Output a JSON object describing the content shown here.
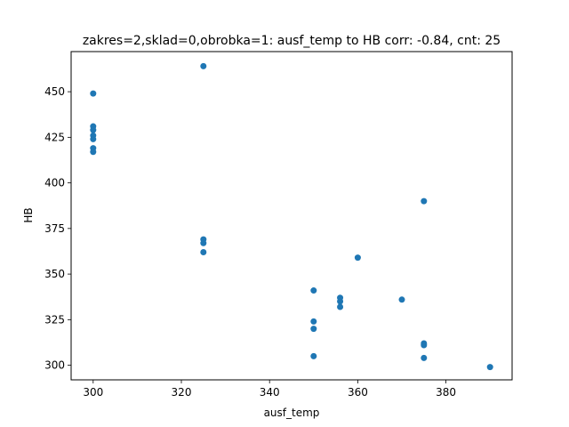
{
  "chart_data": {
    "type": "scatter",
    "title": "zakres=2,sklad=0,obrobka=1: ausf_temp to HB corr: -0.84, cnt: 25",
    "xlabel": "ausf_temp",
    "ylabel": "HB",
    "xlim": [
      295,
      395
    ],
    "ylim": [
      292,
      472
    ],
    "xticks": [
      300,
      320,
      340,
      360,
      380
    ],
    "yticks": [
      300,
      325,
      350,
      375,
      400,
      425,
      450
    ],
    "xtick_labels": [
      "300",
      "320",
      "340",
      "360",
      "380"
    ],
    "ytick_labels": [
      "300",
      "325",
      "350",
      "375",
      "400",
      "425",
      "450"
    ],
    "grid": false,
    "marker_color": "#1f77b4",
    "points": [
      {
        "x": 300,
        "y": 449
      },
      {
        "x": 300,
        "y": 431
      },
      {
        "x": 300,
        "y": 429
      },
      {
        "x": 300,
        "y": 426
      },
      {
        "x": 300,
        "y": 424
      },
      {
        "x": 300,
        "y": 419
      },
      {
        "x": 300,
        "y": 417
      },
      {
        "x": 325,
        "y": 464
      },
      {
        "x": 325,
        "y": 369
      },
      {
        "x": 325,
        "y": 367
      },
      {
        "x": 325,
        "y": 362
      },
      {
        "x": 350,
        "y": 341
      },
      {
        "x": 350,
        "y": 324
      },
      {
        "x": 350,
        "y": 320
      },
      {
        "x": 350,
        "y": 305
      },
      {
        "x": 356,
        "y": 337
      },
      {
        "x": 356,
        "y": 335
      },
      {
        "x": 356,
        "y": 332
      },
      {
        "x": 360,
        "y": 359
      },
      {
        "x": 370,
        "y": 336
      },
      {
        "x": 375,
        "y": 390
      },
      {
        "x": 375,
        "y": 312
      },
      {
        "x": 375,
        "y": 311
      },
      {
        "x": 375,
        "y": 304
      },
      {
        "x": 390,
        "y": 299
      }
    ]
  }
}
